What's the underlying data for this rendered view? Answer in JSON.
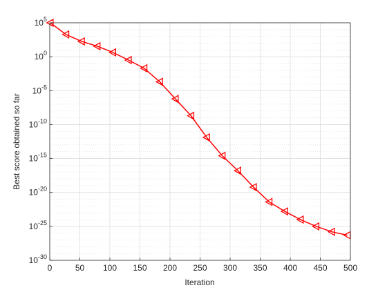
{
  "chart_data": {
    "type": "line",
    "xlabel": "Iteration",
    "ylabel": "Best score obtained so far",
    "x": [
      1,
      27,
      53,
      79,
      105,
      131,
      157,
      183,
      209,
      235,
      261,
      287,
      313,
      339,
      365,
      391,
      417,
      443,
      469,
      495
    ],
    "series": [
      {
        "color": "#ff0000",
        "marker": "triangle-left",
        "values": [
          100000.0,
          1900.0,
          180.0,
          35,
          4.3,
          0.32,
          0.02,
          0.0002,
          6e-07,
          2e-09,
          1.3e-12,
          2.5e-15,
          1.6e-17,
          6e-20,
          4e-22,
          1.6e-23,
          1e-24,
          1e-25,
          1.6e-26,
          5e-27
        ]
      }
    ],
    "xlim": [
      0,
      500
    ],
    "xticks": [
      0,
      50,
      100,
      150,
      200,
      250,
      300,
      350,
      400,
      450,
      500
    ],
    "ylim": [
      1e-30,
      100000.0
    ],
    "ylog": true,
    "yticks": [
      {
        "value": 1e-30,
        "label": "10^-30"
      },
      {
        "value": 1e-25,
        "label": "10^-25"
      },
      {
        "value": 1e-20,
        "label": "10^-20"
      },
      {
        "value": 1e-15,
        "label": "10^-15"
      },
      {
        "value": 1e-10,
        "label": "10^-10"
      },
      {
        "value": 1e-05,
        "label": "10^-5"
      },
      {
        "value": 1,
        "label": "10^0"
      },
      {
        "value": 100000.0,
        "label": "10^5"
      }
    ],
    "grid": true
  }
}
